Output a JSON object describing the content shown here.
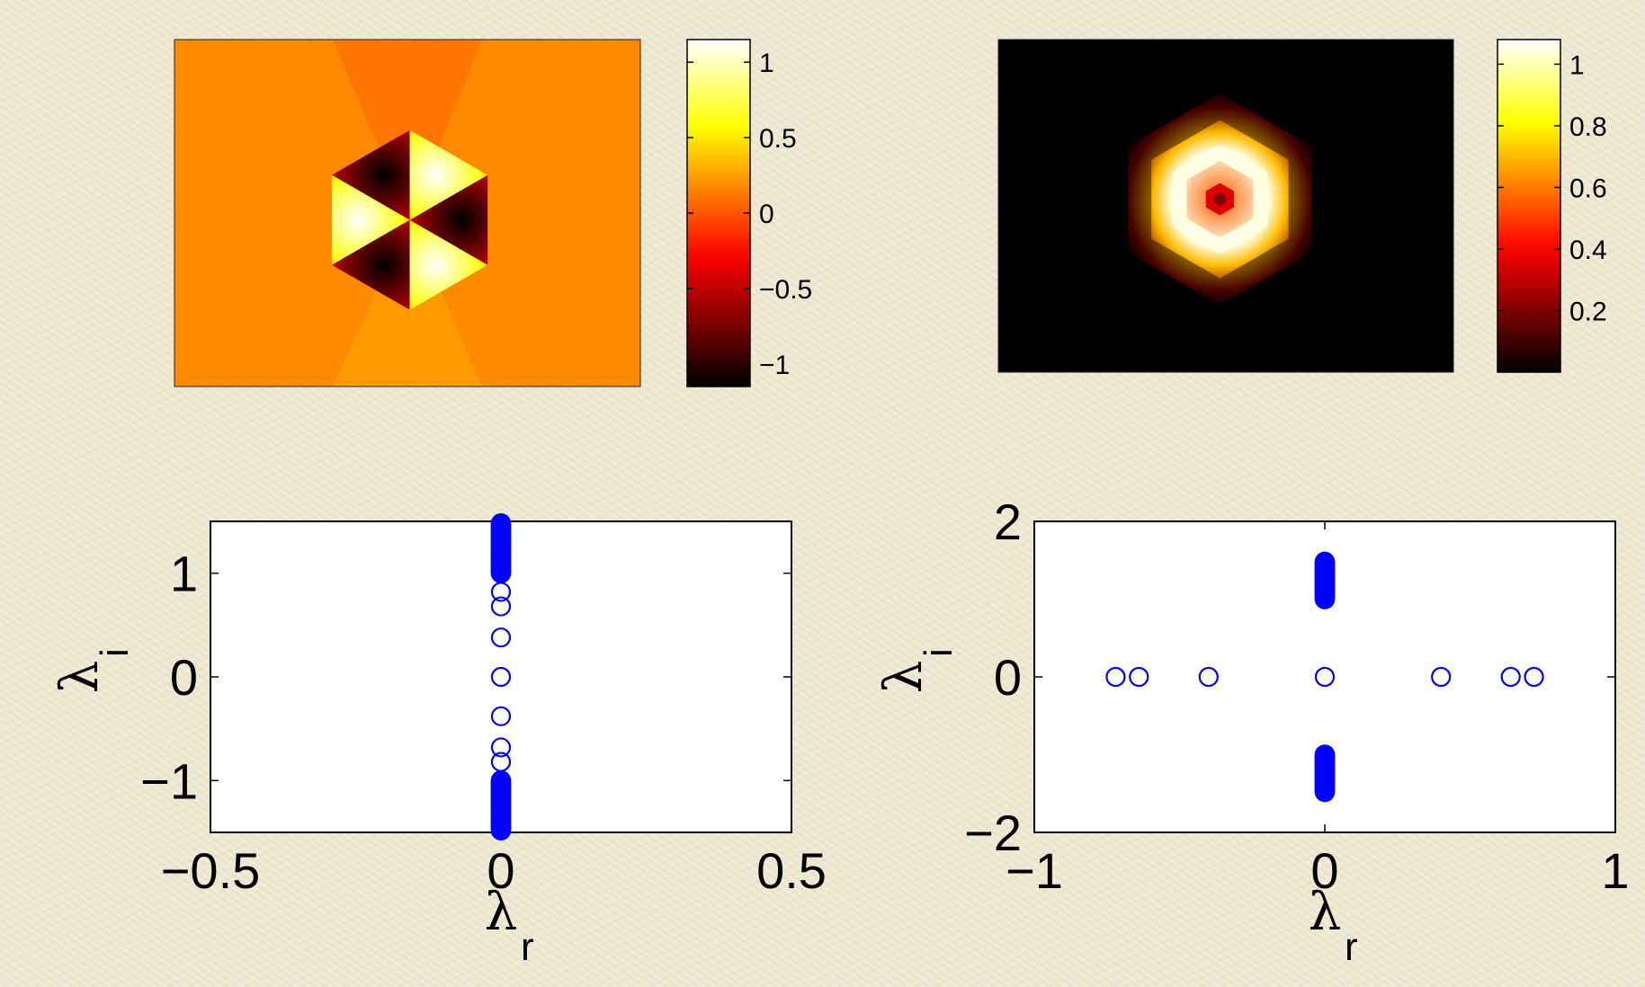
{
  "chart_data": [
    {
      "type": "heatmap",
      "panel": "top-left",
      "colormap": "hot",
      "pattern": "six-lobed hexagonal phase pattern with alternating positive and negative lobes",
      "value_range": [
        -1.15,
        1.15
      ],
      "colorbar_ticks": [
        "1",
        "0.5",
        "0",
        "−0.5",
        "−1"
      ],
      "colorbar_tick_values": [
        1,
        0.5,
        0,
        -0.5,
        -1
      ],
      "background_value": 0.18
    },
    {
      "type": "heatmap",
      "panel": "top-right",
      "colormap": "hot",
      "pattern": "hexagonal ring of amplitude with dark center",
      "value_range": [
        0,
        1.08
      ],
      "colorbar_ticks": [
        "1",
        "0.8",
        "0.6",
        "0.4",
        "0.2"
      ],
      "colorbar_tick_values": [
        1,
        0.8,
        0.6,
        0.4,
        0.2
      ],
      "background_value": 0
    },
    {
      "type": "scatter",
      "panel": "bottom-left",
      "xlabel": "λ",
      "xlabel_sub": "r",
      "ylabel": "λ",
      "ylabel_sub": "i",
      "xlim": [
        -0.5,
        0.5
      ],
      "ylim": [
        -1.5,
        1.5
      ],
      "x_ticks": [
        -0.5,
        0,
        0.5
      ],
      "x_tick_labels": [
        "−0.5",
        "0",
        "0.5"
      ],
      "y_ticks": [
        -1,
        0,
        1
      ],
      "y_tick_labels": [
        "−1",
        "0",
        "1"
      ],
      "marker": "open-circle",
      "color": "#0000ff",
      "grid": false,
      "x": [
        0,
        0,
        0,
        0,
        0,
        0,
        0,
        0,
        0
      ],
      "y": [
        0.82,
        0.68,
        0.38,
        0,
        -0.38,
        -0.68,
        -0.82,
        1.0,
        -1.0
      ],
      "continuous_bands": [
        {
          "x": 0,
          "y_from": 1.0,
          "y_to": 1.48
        },
        {
          "x": 0,
          "y_from": -1.48,
          "y_to": -1.0
        }
      ]
    },
    {
      "type": "scatter",
      "panel": "bottom-right",
      "xlabel": "λ",
      "xlabel_sub": "r",
      "ylabel": "λ",
      "ylabel_sub": "i",
      "xlim": [
        -1,
        1
      ],
      "ylim": [
        -2,
        2
      ],
      "x_ticks": [
        -1,
        0,
        1
      ],
      "x_tick_labels": [
        "−1",
        "0",
        "1"
      ],
      "y_ticks": [
        -2,
        0,
        2
      ],
      "y_tick_labels": [
        "−2",
        "0",
        "2"
      ],
      "marker": "open-circle",
      "color": "#0000ff",
      "grid": false,
      "x": [
        -0.72,
        -0.64,
        -0.4,
        0,
        0.4,
        0.64,
        0.72
      ],
      "y": [
        0,
        0,
        0,
        0,
        0,
        0,
        0
      ],
      "continuous_bands": [
        {
          "x": 0,
          "y_from": 1.0,
          "y_to": 1.48
        },
        {
          "x": 0,
          "y_from": -1.48,
          "y_to": -1.0
        }
      ]
    }
  ]
}
